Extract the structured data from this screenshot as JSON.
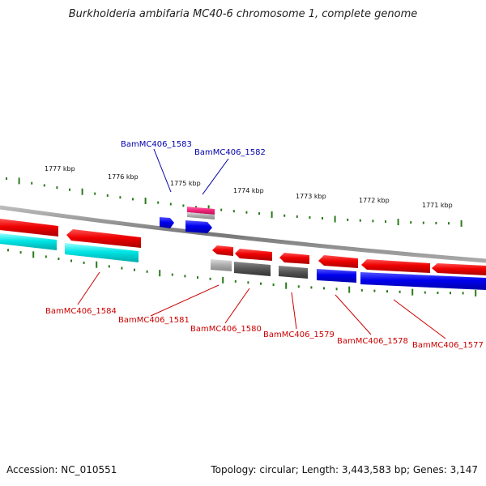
{
  "title": "Burkholderia ambifaria MC40-6 chromosome 1, complete genome",
  "footer": {
    "accession": "Accession: NC_010551",
    "topology": "Topology: circular; Length: 3,443,583 bp; Genes: 3,147"
  },
  "ruler": [
    "1777 kbp",
    "1776 kbp",
    "1775 kbp",
    "1774 kbp",
    "1773 kbp",
    "1772 kbp",
    "1771 kbp"
  ],
  "gene_labels": {
    "forward": [
      "BamMC406_1583",
      "BamMC406_1582"
    ],
    "reverse": [
      "BamMC406_1584",
      "BamMC406_1581",
      "BamMC406_1580",
      "BamMC406_1579",
      "BamMC406_1578",
      "BamMC406_1577"
    ]
  },
  "colors": {
    "label_forward": "#0000aa",
    "label_reverse": "#cc0000",
    "backbone": "#888888",
    "ticks": "#2a7a1a",
    "red": "#ee0000",
    "blue": "#0000ee",
    "cyan": "#00dddd",
    "magenta": "#ee2277",
    "grey_light": "#aaaaaa",
    "grey_dark": "#555555"
  }
}
